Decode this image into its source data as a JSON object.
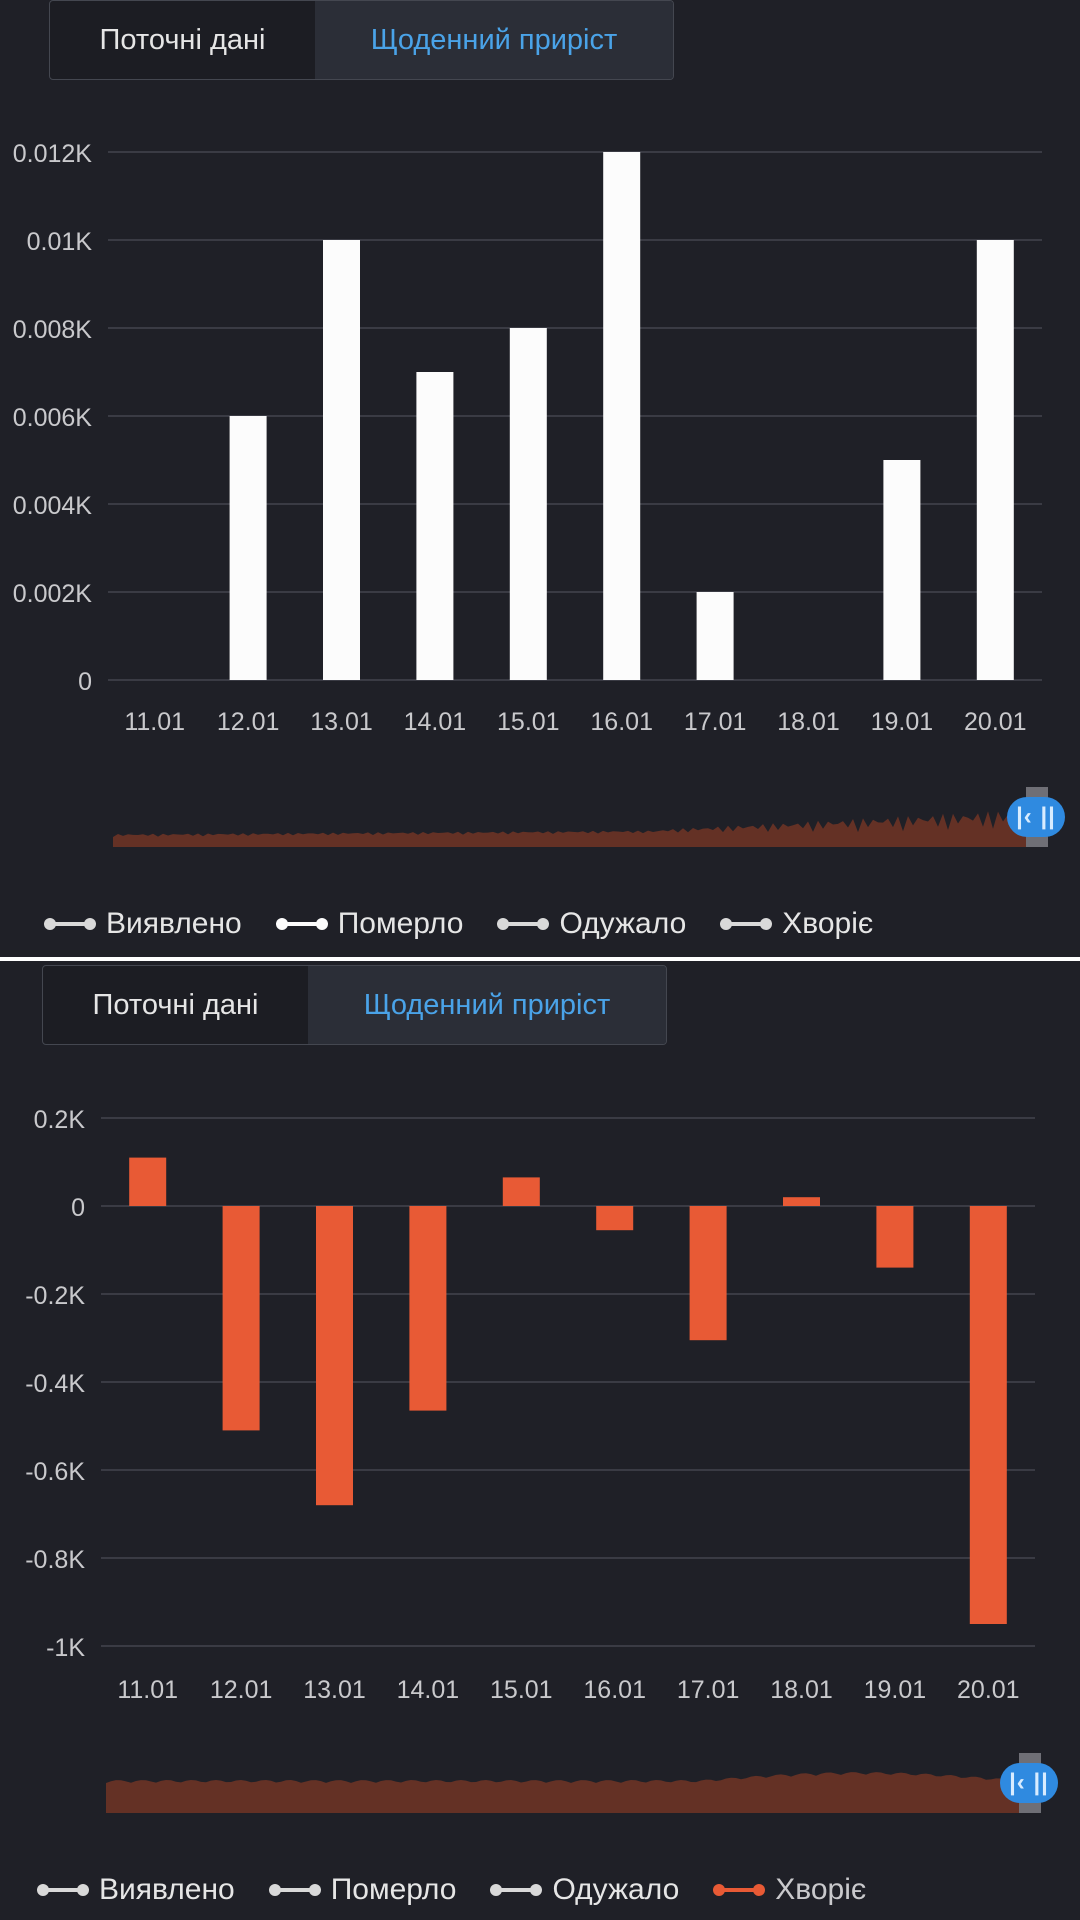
{
  "tabs": [
    "Поточні дані",
    "Щоденний приріст"
  ],
  "legend": [
    {
      "label": "Виявлено"
    },
    {
      "label": "Померло"
    },
    {
      "label": "Одужало"
    },
    {
      "label": "Хворіє"
    }
  ],
  "navigator_handle": "|‹ ||",
  "colors": {
    "background": "#1f2027",
    "grid": "#3a3b44",
    "axis_text": "#c9c9cc",
    "bar_white": "#fcfcfc",
    "bar_orange": "#e85a35",
    "tab_active": "#4aa3e8",
    "legend_inactive": "#d9d9d9",
    "navigator_fill": "#6b3326"
  },
  "chart_data": [
    {
      "type": "bar",
      "categories": [
        "11.01",
        "12.01",
        "13.01",
        "14.01",
        "15.01",
        "16.01",
        "17.01",
        "18.01",
        "19.01",
        "20.01"
      ],
      "values": [
        0,
        0.006,
        0.01,
        0.007,
        0.008,
        0.012,
        0.002,
        0,
        0.005,
        0.01
      ],
      "yticks": [
        "0",
        "0.002K",
        "0.004K",
        "0.006K",
        "0.008K",
        "0.01K",
        "0.012K"
      ],
      "ylim": [
        0,
        0.012
      ],
      "bar_color": "#fcfcfc",
      "active_legend": [
        1
      ],
      "grid": true,
      "legend_position": "bottom"
    },
    {
      "type": "bar",
      "categories": [
        "11.01",
        "12.01",
        "13.01",
        "14.01",
        "15.01",
        "16.01",
        "17.01",
        "18.01",
        "19.01",
        "20.01"
      ],
      "values": [
        0.11,
        -0.51,
        -0.68,
        -0.465,
        0.065,
        -0.055,
        -0.305,
        0.02,
        -0.14,
        -0.95
      ],
      "yticks": [
        "-1K",
        "-0.8K",
        "-0.6K",
        "-0.4K",
        "-0.2K",
        "0",
        "0.2K"
      ],
      "ylim": [
        -1,
        0.2
      ],
      "bar_color": "#e85a35",
      "active_legend": [
        3
      ],
      "grid": true,
      "legend_position": "bottom"
    }
  ]
}
